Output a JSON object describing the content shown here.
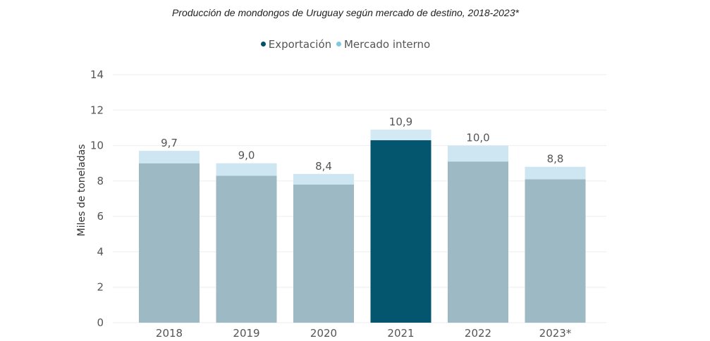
{
  "chart_data": {
    "type": "bar",
    "stacked": true,
    "title": "Producción de mondongos de Uruguay según mercado de destino, 2018-2023*",
    "xlabel": "",
    "ylabel": "Miles de toneladas",
    "ylim": [
      0,
      14
    ],
    "yticks": [
      0,
      2,
      4,
      6,
      8,
      10,
      12,
      14
    ],
    "yticks_labels": [
      "0",
      "2",
      "4",
      "6",
      "8",
      "10",
      "12",
      "14"
    ],
    "grid": true,
    "legend_position": "top",
    "categories": [
      "2018",
      "2019",
      "2020",
      "2021",
      "2022",
      "2023*"
    ],
    "series": [
      {
        "name": "Exportación",
        "values": [
          9.0,
          8.3,
          7.8,
          10.3,
          9.1,
          8.1
        ]
      },
      {
        "name": "Mercado interno",
        "values": [
          0.7,
          0.7,
          0.6,
          0.6,
          0.9,
          0.7
        ]
      }
    ],
    "totals": [
      9.7,
      9.0,
      8.4,
      10.9,
      10.0,
      8.8
    ],
    "total_labels": [
      "9,7",
      "9,0",
      "8,4",
      "10,9",
      "10,0",
      "8,8"
    ],
    "highlight_category": "2021"
  },
  "colors": {
    "export_legend": "#004f6b",
    "internal_legend": "#7ec8e3",
    "export_highlight": "#04566e",
    "export_muted": "#9dbac4",
    "internal_bar": "#cde6f1",
    "internal_highlight": "#d3eaf4",
    "grid": "#eeeeee"
  }
}
